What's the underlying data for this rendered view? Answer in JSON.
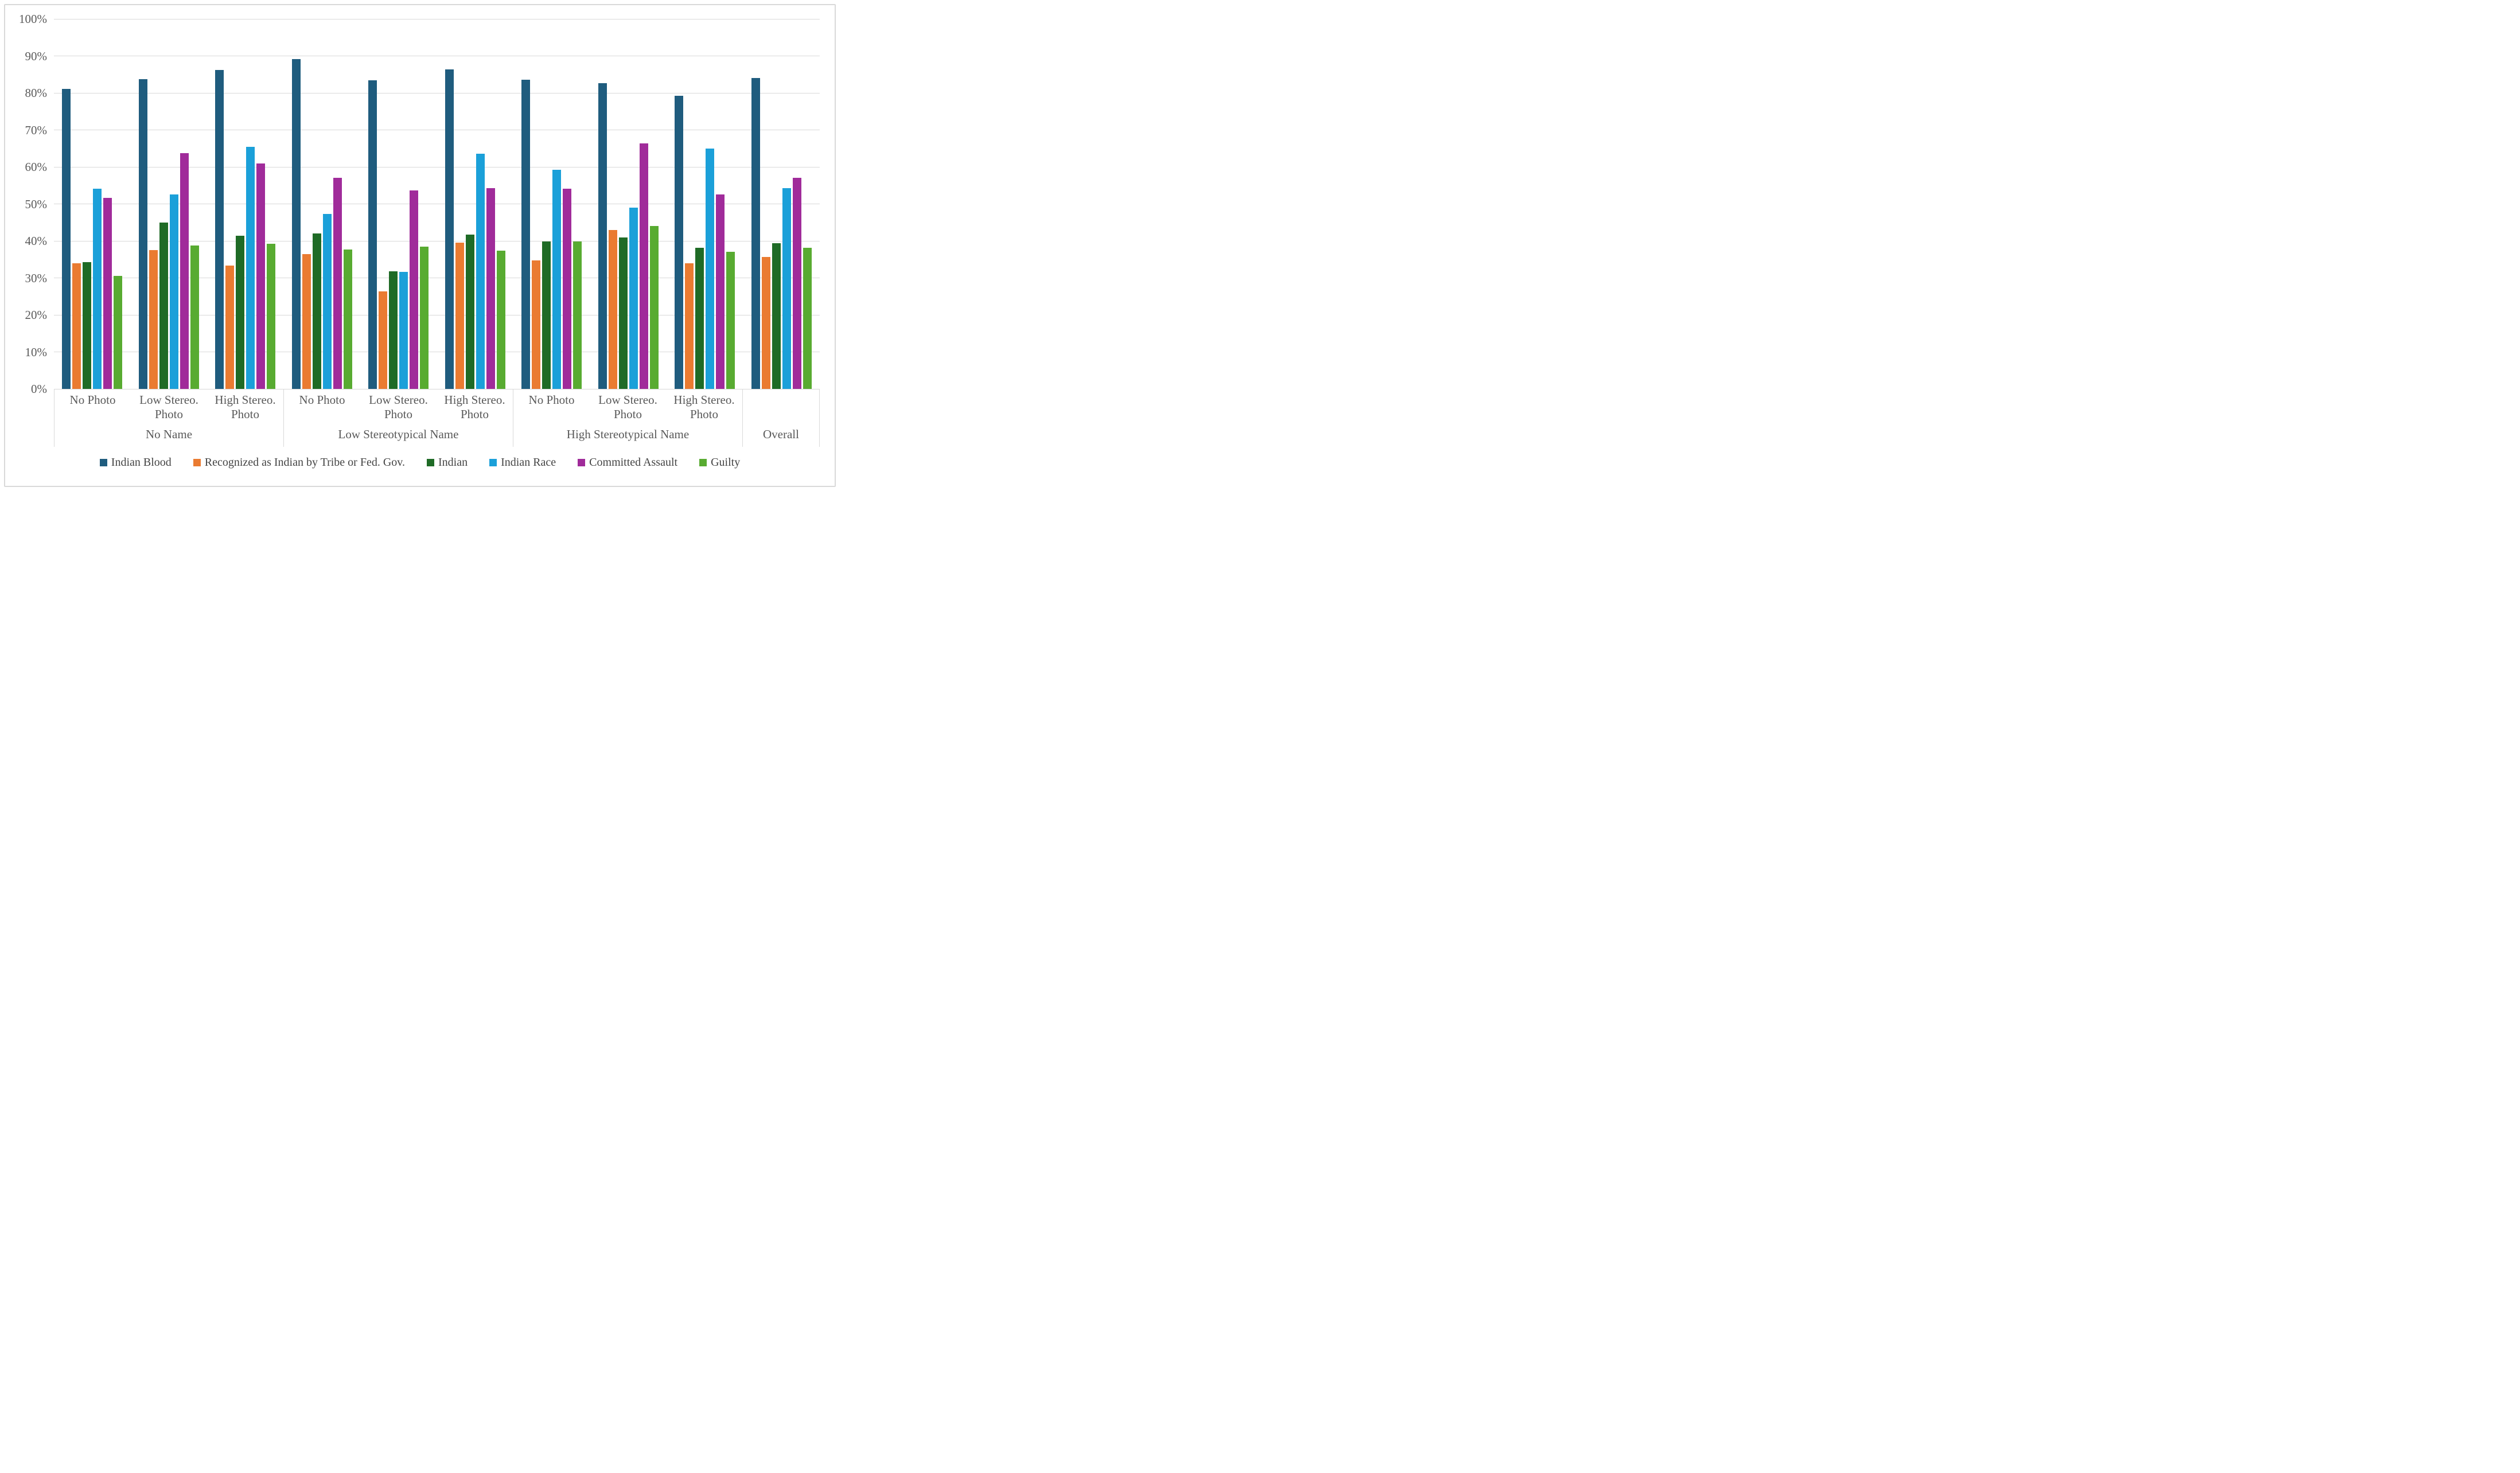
{
  "colors": {
    "gridline": "#D9D9D9",
    "axis_line": "#C6C6C6",
    "axis_text": "#595959",
    "legend_text": "#444444",
    "chart_border": "#D9D9D9"
  },
  "chart_data": {
    "type": "bar",
    "title": "",
    "xlabel": "",
    "ylabel": "",
    "ylim": [
      0,
      100
    ],
    "grid": true,
    "legend_position": "bottom",
    "y_ticks": [
      "0%",
      "10%",
      "20%",
      "30%",
      "40%",
      "50%",
      "60%",
      "70%",
      "80%",
      "90%",
      "100%"
    ],
    "series_names": [
      "Indian Blood",
      "Recognized as Indian by Tribe or Fed. Gov.",
      "Indian",
      "Indian Race",
      "Committed Assault",
      "Guilty"
    ],
    "series_colors": [
      "#1F5C7E",
      "#EA7B31",
      "#1F6B26",
      "#1BA0D9",
      "#A02B9A",
      "#58AB31"
    ],
    "name_groups": [
      {
        "label": "No Name",
        "categories": [
          {
            "label": "No Photo",
            "values": [
              81.1,
              34.0,
              34.2,
              54.1,
              51.7,
              30.6
            ]
          },
          {
            "label": "Low Stereo.\nPhoto",
            "values": [
              83.7,
              37.5,
              45.0,
              52.5,
              63.8,
              38.8
            ]
          },
          {
            "label": "High Stereo.\nPhoto",
            "values": [
              86.2,
              33.3,
              41.4,
              65.4,
              61.0,
              39.2
            ]
          }
        ]
      },
      {
        "label": "Low Stereotypical Name",
        "categories": [
          {
            "label": "No Photo",
            "values": [
              89.2,
              36.5,
              42.0,
              47.3,
              57.0,
              37.7
            ]
          },
          {
            "label": "Low Stereo.\nPhoto",
            "values": [
              83.4,
              26.3,
              31.8,
              31.7,
              53.7,
              38.5
            ]
          },
          {
            "label": "High Stereo.\nPhoto",
            "values": [
              86.4,
              39.5,
              41.7,
              63.5,
              54.2,
              37.4
            ]
          }
        ]
      },
      {
        "label": "High Stereotypical Name",
        "categories": [
          {
            "label": "No Photo",
            "values": [
              83.6,
              34.7,
              39.8,
              59.2,
              54.1,
              39.9
            ]
          },
          {
            "label": "Low Stereo.\nPhoto",
            "values": [
              82.6,
              42.9,
              40.9,
              49.0,
              66.3,
              44.0
            ]
          },
          {
            "label": "High Stereo.\nPhoto",
            "values": [
              79.3,
              34.0,
              38.2,
              65.0,
              52.5,
              37.1
            ]
          }
        ]
      },
      {
        "label": "Overall",
        "categories": [
          {
            "label": "",
            "values": [
              84.0,
              35.6,
              39.4,
              54.2,
              57.1,
              38.2
            ]
          }
        ]
      }
    ]
  }
}
